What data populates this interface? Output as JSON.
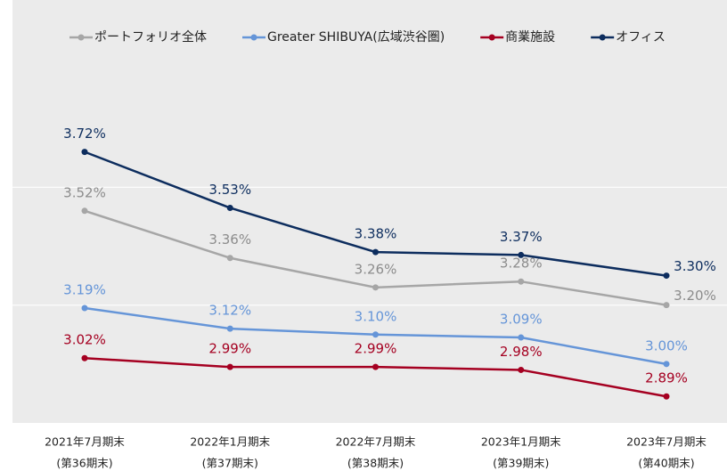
{
  "chart_data": {
    "type": "line",
    "categories": [
      [
        "2021年7月期末",
        "(第36期末)"
      ],
      [
        "2022年1月期末",
        "(第37期末)"
      ],
      [
        "2022年7月期末",
        "(第38期末)"
      ],
      [
        "2023年1月期末",
        "(第39期末)"
      ],
      [
        "2023年7月期末",
        "(第40期末)"
      ]
    ],
    "series": [
      {
        "name": "ポートフォリオ全体",
        "color": "#a6a6a6",
        "values": [
          3.52,
          3.36,
          3.26,
          3.28,
          3.2
        ],
        "value_labels": [
          "3.52%",
          "3.36%",
          "3.26%",
          "3.28%",
          "3.20%"
        ]
      },
      {
        "name": "Greater SHIBUYA(広域渋谷圏)",
        "color": "#6595d8",
        "values": [
          3.19,
          3.12,
          3.1,
          3.09,
          3.0
        ],
        "value_labels": [
          "3.19%",
          "3.12%",
          "3.10%",
          "3.09%",
          "3.00%"
        ]
      },
      {
        "name": "商業施設",
        "color": "#a50021",
        "values": [
          3.02,
          2.99,
          2.99,
          2.98,
          2.89
        ],
        "value_labels": [
          "3.02%",
          "2.99%",
          "2.99%",
          "2.98%",
          "2.89%"
        ]
      },
      {
        "name": "オフィス",
        "color": "#0d2d5e",
        "values": [
          3.72,
          3.53,
          3.38,
          3.37,
          3.3
        ],
        "value_labels": [
          "3.72%",
          "3.53%",
          "3.38%",
          "3.37%",
          "3.30%"
        ]
      }
    ],
    "ylim": [
      2.8,
      4.0
    ],
    "yticks": [
      3.2,
      3.6
    ],
    "grid": true,
    "legend": "top"
  }
}
